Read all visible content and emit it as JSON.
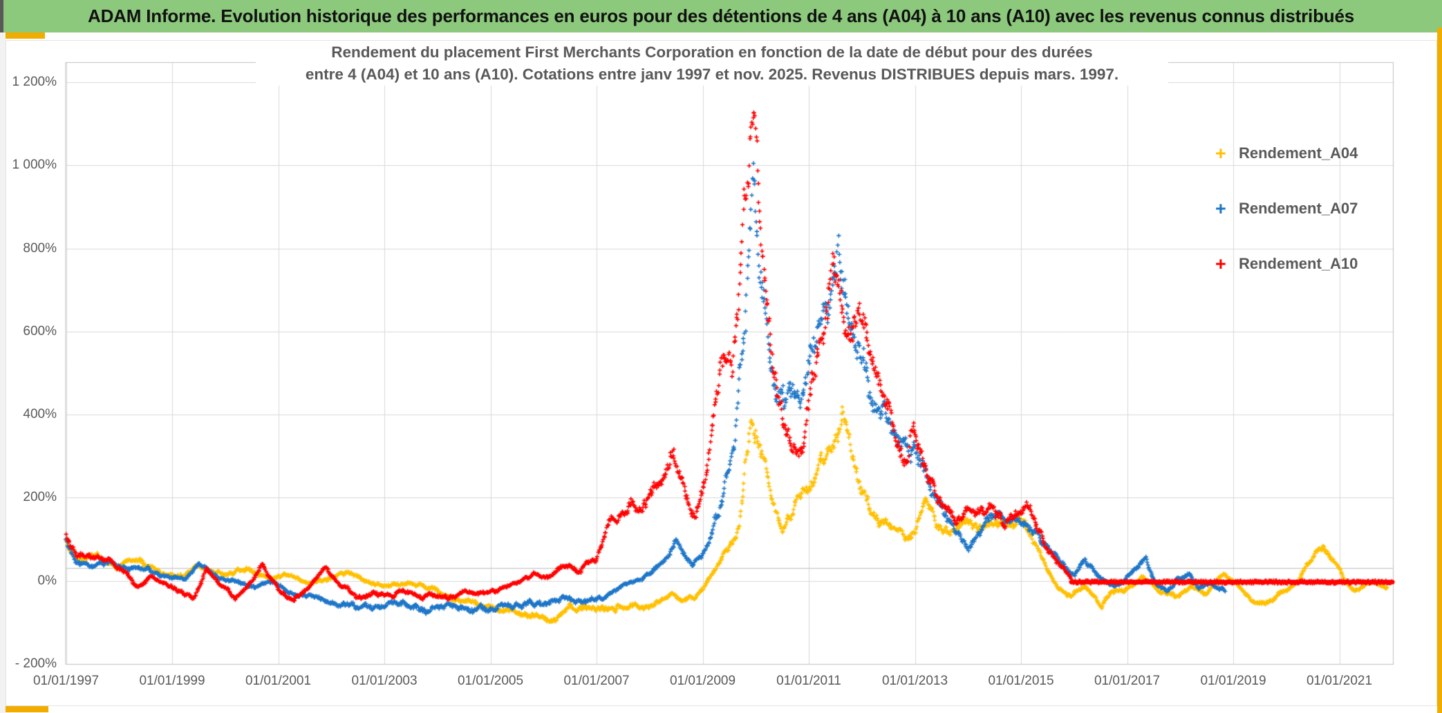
{
  "header": {
    "title": "ADAM Informe. Evolution historique des performances en euros pour des détentions de 4 ans (A04) à 10 ans (A10) avec les revenus connus distribués"
  },
  "colors": {
    "header_green": "#8CC97C",
    "gold_accent": "#F0AC00",
    "gridline": "#D9D9D9",
    "axis_line": "#BFBFBF",
    "reference_line": "#C8C8C8",
    "title_text": "#595959",
    "header_text": "#111111",
    "series_a04": "#FFC000",
    "series_a07": "#1E76C8",
    "series_a10": "#FF0000"
  },
  "chart_data": {
    "type": "scatter",
    "title_line1": "Rendement du placement First Merchants Corporation en fonction de la date de début pour des durées",
    "title_line2": "entre 4 (A04) et 10 ans (A10). Cotations entre janv 1997 et nov. 2025. Revenus DISTRIBUES depuis mars. 1997.",
    "xlabel": "",
    "ylabel": "",
    "grid": true,
    "legend_position": "right-inside",
    "marker": "+",
    "x_axis": {
      "range_years": [
        1996.95,
        2022.05
      ],
      "ticks": [
        {
          "label": "01/01/1997",
          "year": 1997
        },
        {
          "label": "01/01/1999",
          "year": 1999
        },
        {
          "label": "01/01/2001",
          "year": 2001
        },
        {
          "label": "01/01/2003",
          "year": 2003
        },
        {
          "label": "01/01/2005",
          "year": 2005
        },
        {
          "label": "01/01/2007",
          "year": 2007
        },
        {
          "label": "01/01/2009",
          "year": 2009
        },
        {
          "label": "01/01/2011",
          "year": 2011
        },
        {
          "label": "01/01/2013",
          "year": 2013
        },
        {
          "label": "01/01/2015",
          "year": 2015
        },
        {
          "label": "01/01/2017",
          "year": 2017
        },
        {
          "label": "01/01/2019",
          "year": 2019
        },
        {
          "label": "01/01/2021",
          "year": 2021
        }
      ]
    },
    "y_axis": {
      "range_pct": [
        -200,
        1250
      ],
      "ticks": [
        {
          "label": "1 200%",
          "value": 1200
        },
        {
          "label": "1 000%",
          "value": 1000
        },
        {
          "label": "800%",
          "value": 800
        },
        {
          "label": "600%",
          "value": 600
        },
        {
          "label": "400%",
          "value": 400
        },
        {
          "label": "200%",
          "value": 200
        },
        {
          "label": "0%",
          "value": 0
        },
        {
          "label": "- 200%",
          "value": -200
        }
      ]
    },
    "reference_line": {
      "value": 30
    },
    "series": [
      {
        "name": "Rendement_A04",
        "marker": "+",
        "color": "#FFC000",
        "points": [
          [
            1997.0,
            95
          ],
          [
            1997.15,
            65
          ],
          [
            1997.3,
            45
          ],
          [
            1997.6,
            60
          ],
          [
            1997.8,
            40
          ],
          [
            1998.0,
            35
          ],
          [
            1998.4,
            50
          ],
          [
            1998.8,
            22
          ],
          [
            1999.2,
            12
          ],
          [
            1999.5,
            40
          ],
          [
            1999.8,
            20
          ],
          [
            2000.0,
            12
          ],
          [
            2000.4,
            28
          ],
          [
            2000.8,
            5
          ],
          [
            2001.2,
            15
          ],
          [
            2001.6,
            -5
          ],
          [
            2002.0,
            8
          ],
          [
            2002.3,
            25
          ],
          [
            2002.7,
            -5
          ],
          [
            2003.1,
            -15
          ],
          [
            2003.5,
            -5
          ],
          [
            2003.9,
            -20
          ],
          [
            2004.3,
            -45
          ],
          [
            2004.7,
            -55
          ],
          [
            2005.1,
            -65
          ],
          [
            2005.5,
            -75
          ],
          [
            2005.9,
            -85
          ],
          [
            2006.1,
            -90
          ],
          [
            2006.4,
            -75
          ],
          [
            2006.8,
            -65
          ],
          [
            2007.2,
            -70
          ],
          [
            2007.6,
            -60
          ],
          [
            2008.0,
            -55
          ],
          [
            2008.4,
            -28
          ],
          [
            2008.7,
            -45
          ],
          [
            2009.0,
            -20
          ],
          [
            2009.3,
            40
          ],
          [
            2009.55,
            90
          ],
          [
            2009.7,
            140
          ],
          [
            2009.8,
            280
          ],
          [
            2009.92,
            400
          ],
          [
            2010.05,
            330
          ],
          [
            2010.25,
            230
          ],
          [
            2010.5,
            120
          ],
          [
            2010.7,
            170
          ],
          [
            2010.9,
            210
          ],
          [
            2011.1,
            240
          ],
          [
            2011.3,
            280
          ],
          [
            2011.5,
            340
          ],
          [
            2011.65,
            412
          ],
          [
            2011.8,
            310
          ],
          [
            2012.0,
            205
          ],
          [
            2012.2,
            152
          ],
          [
            2012.4,
            140
          ],
          [
            2012.6,
            120
          ],
          [
            2012.8,
            95
          ],
          [
            2013.0,
            115
          ],
          [
            2013.2,
            200
          ],
          [
            2013.4,
            150
          ],
          [
            2013.6,
            125
          ],
          [
            2013.8,
            135
          ],
          [
            2014.0,
            140
          ],
          [
            2014.2,
            112
          ],
          [
            2014.5,
            170
          ],
          [
            2014.8,
            130
          ],
          [
            2015.0,
            140
          ],
          [
            2015.2,
            100
          ],
          [
            2015.45,
            40
          ],
          [
            2015.7,
            -15
          ],
          [
            2015.95,
            -40
          ],
          [
            2016.2,
            -20
          ],
          [
            2016.5,
            -55
          ],
          [
            2016.8,
            -25
          ],
          [
            2017.0,
            -20
          ],
          [
            2017.3,
            10
          ],
          [
            2017.6,
            -25
          ],
          [
            2017.9,
            -40
          ],
          [
            2018.2,
            -10
          ],
          [
            2018.5,
            -30
          ],
          [
            2018.8,
            15
          ],
          [
            2019.0,
            0
          ],
          [
            2019.35,
            -45
          ],
          [
            2019.6,
            -55
          ],
          [
            2019.8,
            -35
          ],
          [
            2020.0,
            -25
          ],
          [
            2020.25,
            10
          ],
          [
            2020.45,
            50
          ],
          [
            2020.7,
            85
          ],
          [
            2020.9,
            55
          ],
          [
            2021.1,
            0
          ],
          [
            2021.3,
            -30
          ],
          [
            2021.5,
            -10
          ],
          [
            2021.65,
            -5
          ],
          [
            2021.9,
            -20
          ]
        ]
      },
      {
        "name": "Rendement_A07",
        "marker": "+",
        "color": "#1E76C8",
        "points": [
          [
            1997.0,
            100
          ],
          [
            1997.2,
            60
          ],
          [
            1997.5,
            35
          ],
          [
            1997.8,
            45
          ],
          [
            1998.0,
            30
          ],
          [
            1998.5,
            25
          ],
          [
            1999.0,
            8
          ],
          [
            1999.25,
            0
          ],
          [
            1999.5,
            35
          ],
          [
            1999.8,
            15
          ],
          [
            2000.0,
            2
          ],
          [
            2000.5,
            -15
          ],
          [
            2000.9,
            -5
          ],
          [
            2001.3,
            -25
          ],
          [
            2001.8,
            -45
          ],
          [
            2002.3,
            -55
          ],
          [
            2002.8,
            -65
          ],
          [
            2003.2,
            -55
          ],
          [
            2003.8,
            -70
          ],
          [
            2004.3,
            -60
          ],
          [
            2004.8,
            -70
          ],
          [
            2005.3,
            -60
          ],
          [
            2005.8,
            -55
          ],
          [
            2006.3,
            -50
          ],
          [
            2006.8,
            -45
          ],
          [
            2007.1,
            -40
          ],
          [
            2007.4,
            -20
          ],
          [
            2007.7,
            -5
          ],
          [
            2008.0,
            15
          ],
          [
            2008.3,
            45
          ],
          [
            2008.5,
            95
          ],
          [
            2008.8,
            45
          ],
          [
            2009.0,
            65
          ],
          [
            2009.3,
            160
          ],
          [
            2009.6,
            320
          ],
          [
            2009.8,
            620
          ],
          [
            2009.95,
            975
          ],
          [
            2010.1,
            700
          ],
          [
            2010.35,
            510
          ],
          [
            2010.6,
            440
          ],
          [
            2010.85,
            460
          ],
          [
            2011.1,
            540
          ],
          [
            2011.35,
            660
          ],
          [
            2011.55,
            820
          ],
          [
            2011.75,
            640
          ],
          [
            2012.0,
            560
          ],
          [
            2012.2,
            460
          ],
          [
            2012.5,
            370
          ],
          [
            2012.8,
            310
          ],
          [
            2013.0,
            330
          ],
          [
            2013.25,
            260
          ],
          [
            2013.5,
            180
          ],
          [
            2013.75,
            120
          ],
          [
            2014.0,
            80
          ],
          [
            2014.3,
            125
          ],
          [
            2014.55,
            170
          ],
          [
            2014.8,
            140
          ],
          [
            2015.0,
            150
          ],
          [
            2015.25,
            115
          ],
          [
            2015.5,
            80
          ],
          [
            2015.75,
            40
          ],
          [
            2016.0,
            15
          ],
          [
            2016.2,
            55
          ],
          [
            2016.45,
            15
          ],
          [
            2016.7,
            -15
          ],
          [
            2016.9,
            -5
          ],
          [
            2017.15,
            30
          ],
          [
            2017.35,
            55
          ],
          [
            2017.55,
            -10
          ],
          [
            2017.75,
            -30
          ],
          [
            2017.95,
            5
          ],
          [
            2018.15,
            15
          ],
          [
            2018.35,
            -15
          ],
          [
            2018.55,
            -5
          ],
          [
            2018.85,
            -25
          ]
        ]
      },
      {
        "name": "Rendement_A10",
        "marker": "+",
        "color": "#FF0000",
        "points": [
          [
            1997.0,
            110
          ],
          [
            1997.2,
            60
          ],
          [
            1997.5,
            45
          ],
          [
            1997.8,
            55
          ],
          [
            1998.1,
            25
          ],
          [
            1998.35,
            -15
          ],
          [
            1998.6,
            10
          ],
          [
            1998.9,
            -10
          ],
          [
            1999.2,
            -30
          ],
          [
            1999.4,
            -45
          ],
          [
            1999.65,
            25
          ],
          [
            1999.9,
            -10
          ],
          [
            2000.2,
            -35
          ],
          [
            2000.5,
            -5
          ],
          [
            2000.7,
            40
          ],
          [
            2001.0,
            -20
          ],
          [
            2001.3,
            -45
          ],
          [
            2001.6,
            -10
          ],
          [
            2001.9,
            35
          ],
          [
            2002.2,
            -15
          ],
          [
            2002.5,
            -40
          ],
          [
            2002.8,
            -25
          ],
          [
            2003.1,
            -35
          ],
          [
            2003.4,
            -25
          ],
          [
            2003.7,
            -45
          ],
          [
            2004.0,
            -30
          ],
          [
            2004.3,
            -40
          ],
          [
            2004.6,
            -25
          ],
          [
            2004.9,
            -35
          ],
          [
            2005.2,
            -20
          ],
          [
            2005.5,
            -5
          ],
          [
            2005.8,
            15
          ],
          [
            2006.1,
            10
          ],
          [
            2006.4,
            30
          ],
          [
            2006.7,
            25
          ],
          [
            2007.0,
            55
          ],
          [
            2007.2,
            140
          ],
          [
            2007.4,
            160
          ],
          [
            2007.6,
            200
          ],
          [
            2007.8,
            160
          ],
          [
            2008.0,
            190
          ],
          [
            2008.2,
            235
          ],
          [
            2008.45,
            305
          ],
          [
            2008.65,
            220
          ],
          [
            2008.85,
            155
          ],
          [
            2009.05,
            250
          ],
          [
            2009.25,
            400
          ],
          [
            2009.45,
            550
          ],
          [
            2009.55,
            520
          ],
          [
            2009.7,
            700
          ],
          [
            2009.8,
            900
          ],
          [
            2009.9,
            1080
          ],
          [
            2010.0,
            950
          ],
          [
            2010.1,
            750
          ],
          [
            2010.25,
            600
          ],
          [
            2010.4,
            480
          ],
          [
            2010.55,
            390
          ],
          [
            2010.7,
            320
          ],
          [
            2010.85,
            350
          ],
          [
            2011.0,
            420
          ],
          [
            2011.15,
            520
          ],
          [
            2011.3,
            620
          ],
          [
            2011.45,
            730
          ],
          [
            2011.6,
            640
          ],
          [
            2011.75,
            560
          ],
          [
            2011.9,
            610
          ],
          [
            2012.05,
            640
          ],
          [
            2012.2,
            540
          ],
          [
            2012.35,
            460
          ],
          [
            2012.5,
            420
          ],
          [
            2012.65,
            350
          ],
          [
            2012.8,
            300
          ],
          [
            2012.95,
            380
          ],
          [
            2013.1,
            320
          ],
          [
            2013.25,
            250
          ],
          [
            2013.4,
            200
          ],
          [
            2013.6,
            170
          ],
          [
            2013.8,
            150
          ],
          [
            2014.0,
            165
          ],
          [
            2014.2,
            150
          ],
          [
            2014.45,
            180
          ],
          [
            2014.7,
            145
          ],
          [
            2014.95,
            160
          ],
          [
            2015.1,
            170
          ],
          [
            2015.3,
            120
          ],
          [
            2015.5,
            80
          ],
          [
            2015.7,
            45
          ],
          [
            2015.85,
            20
          ],
          [
            2015.95,
            0
          ]
        ],
        "flat_line": {
          "from_year": 2015.95,
          "to_year": 2022.0,
          "value": -3
        }
      }
    ]
  }
}
